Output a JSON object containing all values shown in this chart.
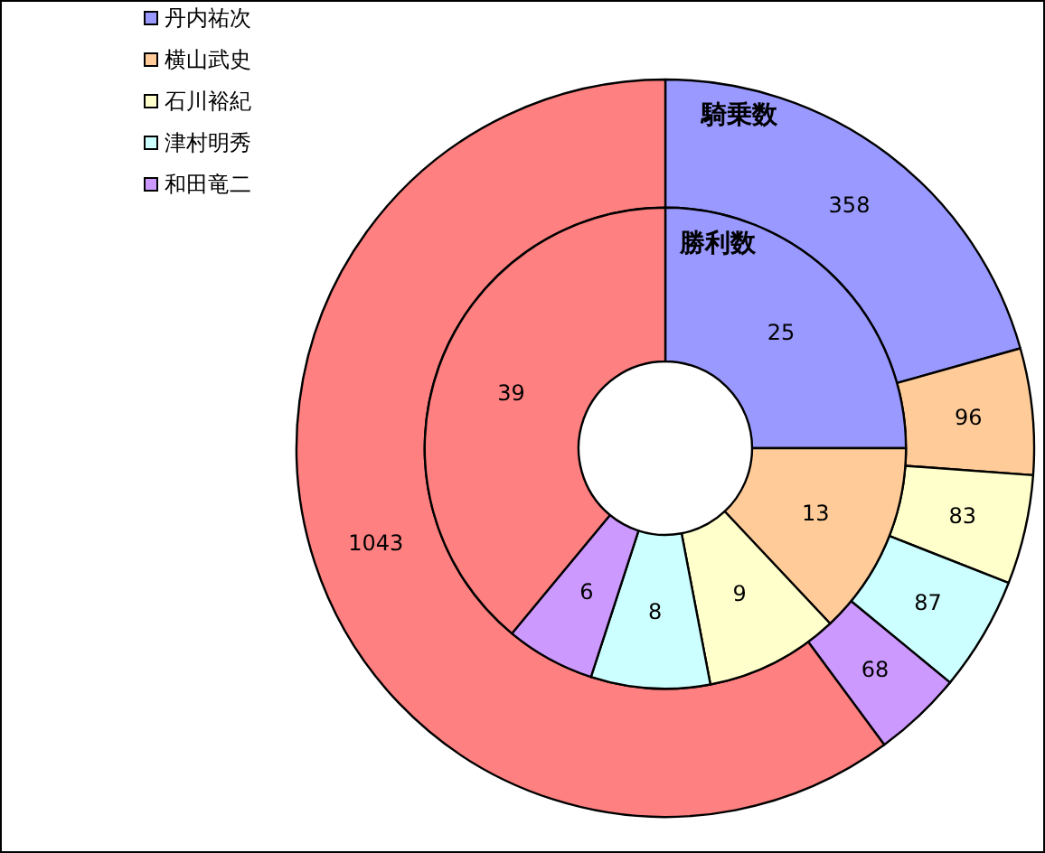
{
  "chart_data": {
    "type": "donut",
    "categories": [
      "丹内祐次",
      "横山武史",
      "石川裕紀",
      "津村明秀",
      "和田竜二",
      null
    ],
    "colors": [
      "#9999ff",
      "#ffcc99",
      "#ffffcc",
      "#ccffff",
      "#cc99ff",
      "#ff8080"
    ],
    "series": [
      {
        "name": "騎乗数",
        "values": [
          358,
          96,
          83,
          87,
          68,
          1043
        ]
      },
      {
        "name": "勝利数",
        "values": [
          25,
          13,
          9,
          8,
          6,
          39
        ]
      }
    ],
    "data_labels": true,
    "legend": "top left"
  }
}
